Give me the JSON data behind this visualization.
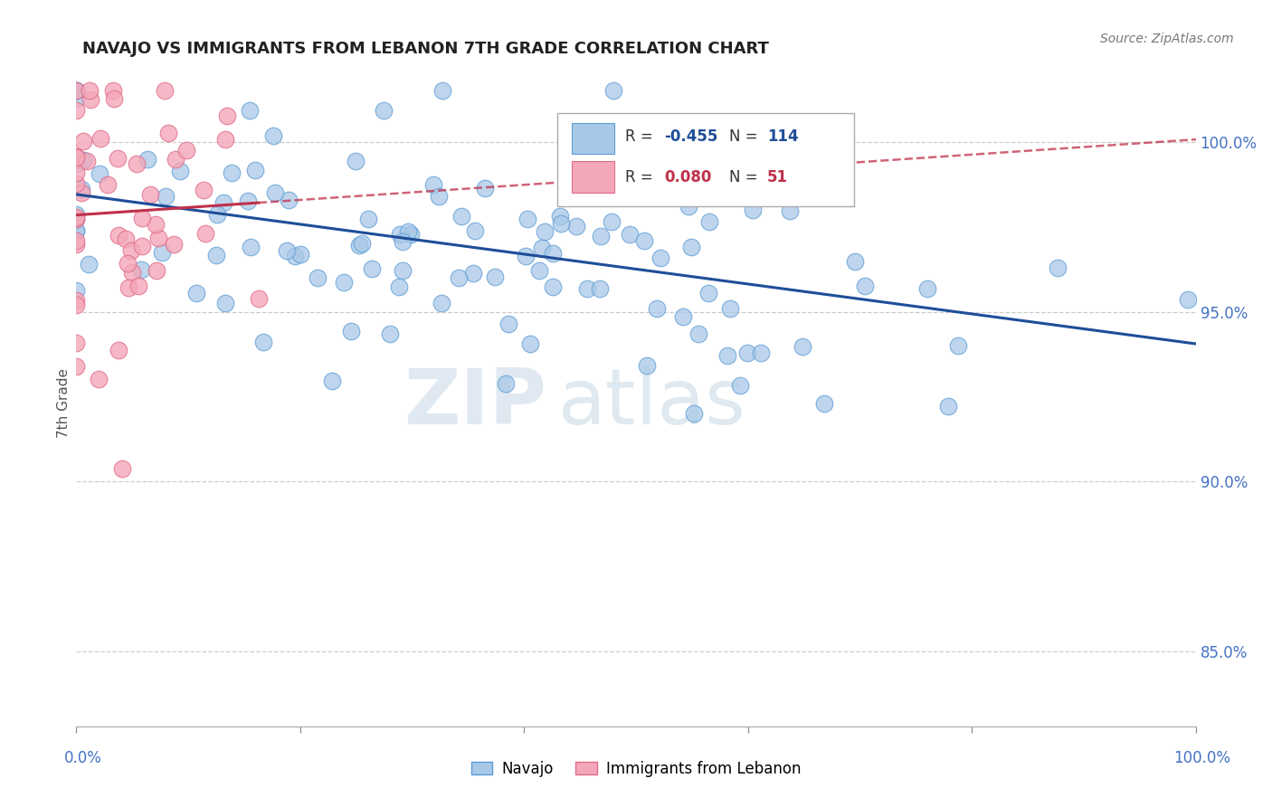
{
  "title": "NAVAJO VS IMMIGRANTS FROM LEBANON 7TH GRADE CORRELATION CHART",
  "source": "Source: ZipAtlas.com",
  "ylabel": "7th Grade",
  "xlim": [
    0.0,
    1.0
  ],
  "ylim": [
    0.828,
    1.018
  ],
  "yticks": [
    0.85,
    0.9,
    0.95,
    1.0
  ],
  "ytick_labels": [
    "85.0%",
    "90.0%",
    "95.0%",
    "100.0%"
  ],
  "navajo_R": -0.455,
  "navajo_N": 114,
  "lebanon_R": 0.08,
  "lebanon_N": 51,
  "navajo_color": "#A8C8E8",
  "navajo_edge": "#5B9BD5",
  "lebanon_color": "#F4A7B9",
  "lebanon_edge": "#E06C8A",
  "navajo_line_color": "#1F4E99",
  "lebanon_line_color": "#C0304A",
  "background_color": "#FFFFFF",
  "grid_color": "#CCCCCC",
  "watermark_zip": "ZIP",
  "watermark_atlas": "atlas",
  "legend_label_navajo": "Navajo",
  "legend_label_lebanon": "Immigrants from Lebanon",
  "title_color": "#222222",
  "axis_color": "#4472C4"
}
